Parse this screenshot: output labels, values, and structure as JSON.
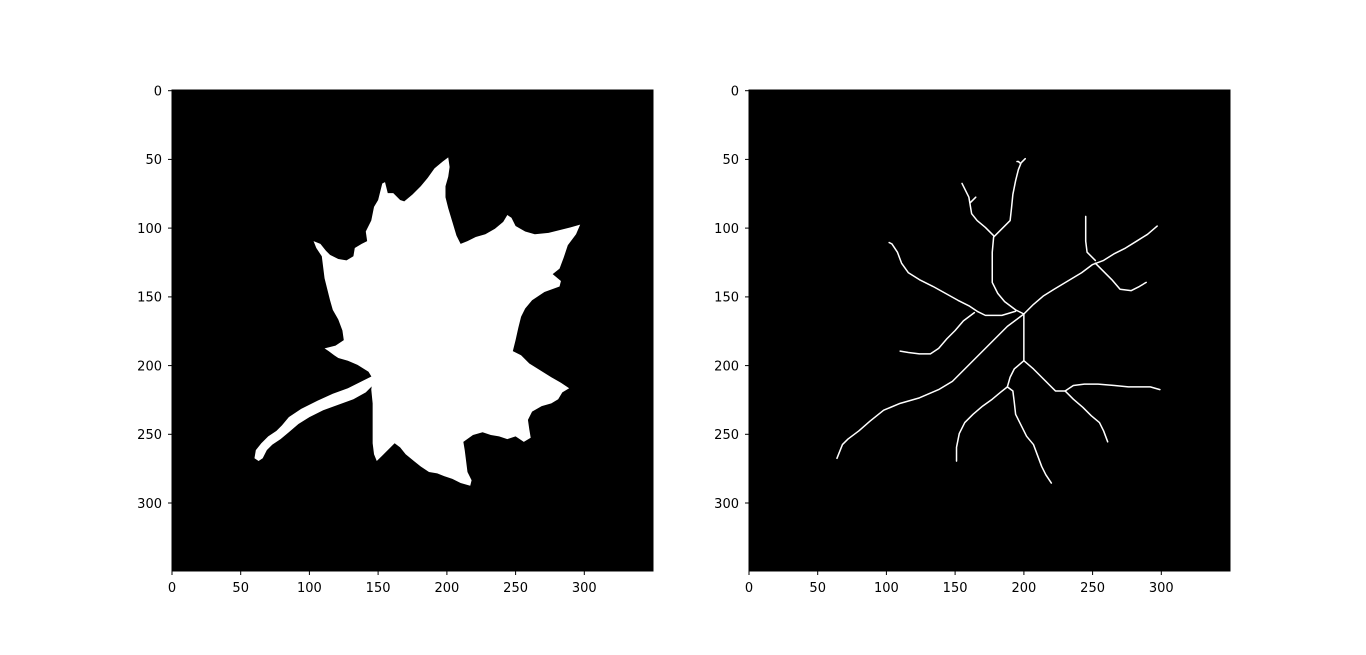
{
  "colors": {
    "figure_background": "#ffffff",
    "image_background": "#000000",
    "foreground": "#ffffff",
    "tick_color": "#000000"
  },
  "image_size": [
    350,
    350
  ],
  "panels": [
    {
      "id": "leaf-mask",
      "content": "binary leaf silhouette",
      "x_ticks": [
        "0",
        "50",
        "100",
        "150",
        "200",
        "250",
        "300"
      ],
      "y_ticks": [
        "0",
        "50",
        "100",
        "150",
        "200",
        "250",
        "300"
      ]
    },
    {
      "id": "leaf-skeleton",
      "content": "leaf skeleton / vein lines",
      "x_ticks": [
        "0",
        "50",
        "100",
        "150",
        "200",
        "250",
        "300"
      ],
      "y_ticks": [
        "0",
        "50",
        "100",
        "150",
        "200",
        "250",
        "300"
      ]
    }
  ]
}
